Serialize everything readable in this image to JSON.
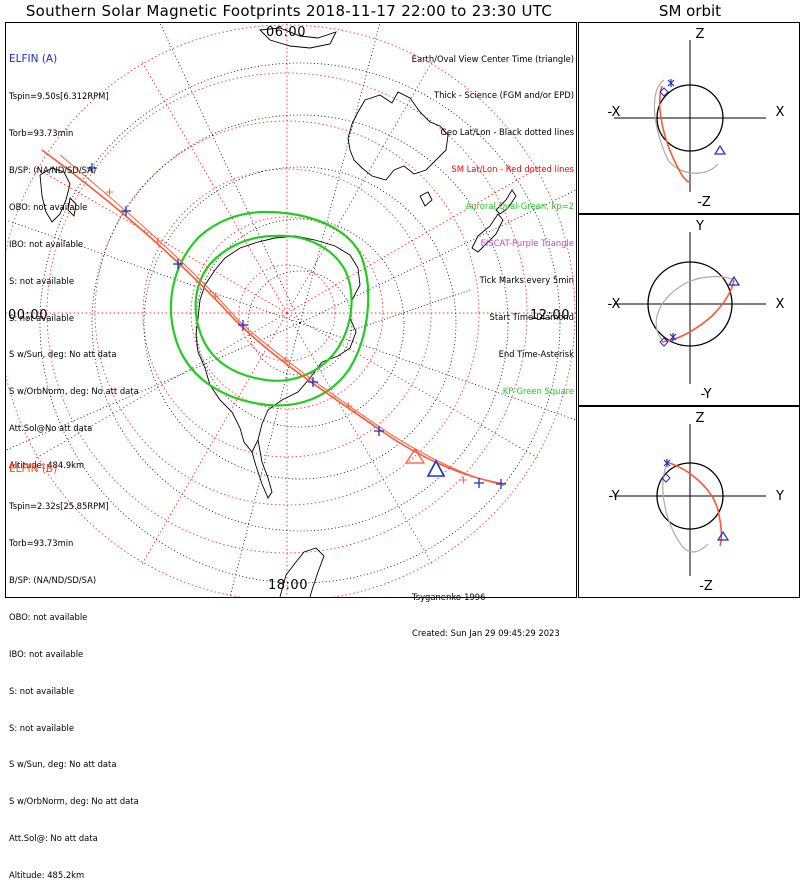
{
  "title": "Southern Solar Magnetic Footprints 2018-11-17 22:00 to 23:30 UTC",
  "orbit_title": "SM orbit",
  "mlt_labels": {
    "top": "06:00",
    "left": "00:00",
    "right": "12:00",
    "bottom": "18:00"
  },
  "spacecraft_a": {
    "name": "ELFIN (A)",
    "color": "#1e2fc8",
    "lines": [
      "Tspin=9.50s[6.312RPM]",
      "Torb=93.73min",
      "B/SP: (NA/ND/SD/SA)",
      "OBO: not available",
      "IBO: not available",
      "S: not available",
      "S: not available",
      "S w/Sun, deg: No att data",
      "S w/OrbNorm, deg: No att data",
      "Att.Sol@No att data",
      "Altitude: 484.9km"
    ]
  },
  "spacecraft_b": {
    "name": "ELFIN (B)",
    "color": "#ff4422",
    "lines": [
      "Tspin=2.32s[25.85RPM]",
      "Torb=93.73min",
      "B/SP: (NA/ND/SD/SA)",
      "OBO: not available",
      "IBO: not available",
      "S: not available",
      "S: not available",
      "S w/Sun, deg: No att data",
      "S w/OrbNorm, deg: No att data",
      "Att.Sol@: No att data",
      "Altitude: 485.2km"
    ]
  },
  "legend": [
    {
      "text": "Earth/Oval View Center Time (triangle)",
      "color": "#000000"
    },
    {
      "text": "Thick - Science (FGM and/or EPD)",
      "color": "#000000"
    },
    {
      "text": "Geo Lat/Lon - Black dotted lines",
      "color": "#000000"
    },
    {
      "text": "SM Lat/Lon - Red dotted lines",
      "color": "#ff0000"
    },
    {
      "text": "Auroral Oval-Green, kp=2",
      "color": "#22cc22"
    },
    {
      "text": "EISCAT-Purple Triangle",
      "color": "#cc44cc"
    },
    {
      "text": "Tick Marks every 5min",
      "color": "#000000"
    },
    {
      "text": "Start Time-Diamond",
      "color": "#000000"
    },
    {
      "text": "End Time-Asterisk",
      "color": "#000000"
    },
    {
      "text": "KP-Green Square",
      "color": "#22cc22"
    }
  ],
  "credits": [
    "Tsyganenko-1996",
    "Created: Sun Jan 29 09:45:29 2023"
  ],
  "orbit_panels": [
    {
      "top": "Z",
      "bottom": "-Z",
      "left": "-X",
      "right": "X"
    },
    {
      "top": "Y",
      "bottom": "-Y",
      "left": "-X",
      "right": "X"
    },
    {
      "top": "Z",
      "bottom": "-Z",
      "left": "-Y",
      "right": "Y"
    }
  ],
  "colors": {
    "sm_grid": "#ff3333",
    "geo_grid": "#000000",
    "oval": "#22cc22",
    "track_a": "#ff5533",
    "ticks_a": "#1e2fc8",
    "track_b": "#ff5533",
    "orbit_gray": "#aaaaaa"
  }
}
